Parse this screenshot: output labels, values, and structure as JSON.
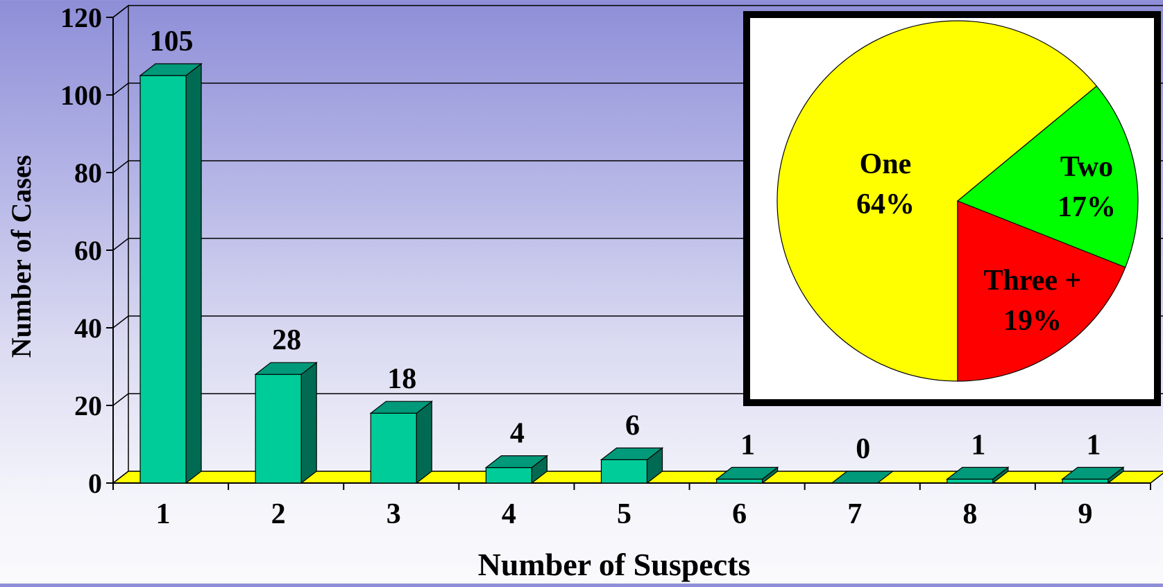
{
  "chart_data": [
    {
      "type": "bar",
      "categories": [
        "1",
        "2",
        "3",
        "4",
        "5",
        "6",
        "7",
        "8",
        "9"
      ],
      "values": [
        105,
        28,
        18,
        4,
        6,
        1,
        0,
        1,
        1
      ],
      "data_labels": [
        "105",
        "28",
        "18",
        "4",
        "6",
        "1",
        "0",
        "1",
        "1"
      ],
      "xlabel": "Number of Suspects",
      "ylabel": "Number of Cases",
      "ylim": [
        0,
        120
      ],
      "yticks": [
        "0",
        "20",
        "40",
        "60",
        "80",
        "100",
        "120"
      ],
      "grid": true,
      "style": "3d",
      "colors": {
        "bar_face": "#00cc99",
        "bar_top": "#00997a",
        "bar_side": "#006b52",
        "floor": "#ffff00"
      }
    },
    {
      "type": "pie",
      "labels": [
        "One",
        "Two",
        "Three +"
      ],
      "values": [
        64,
        17,
        19
      ],
      "percent_labels": [
        "64%",
        "17%",
        "19%"
      ],
      "colors": [
        "#ffff00",
        "#00ff00",
        "#ff0000"
      ],
      "placement": "top-right inset"
    }
  ]
}
